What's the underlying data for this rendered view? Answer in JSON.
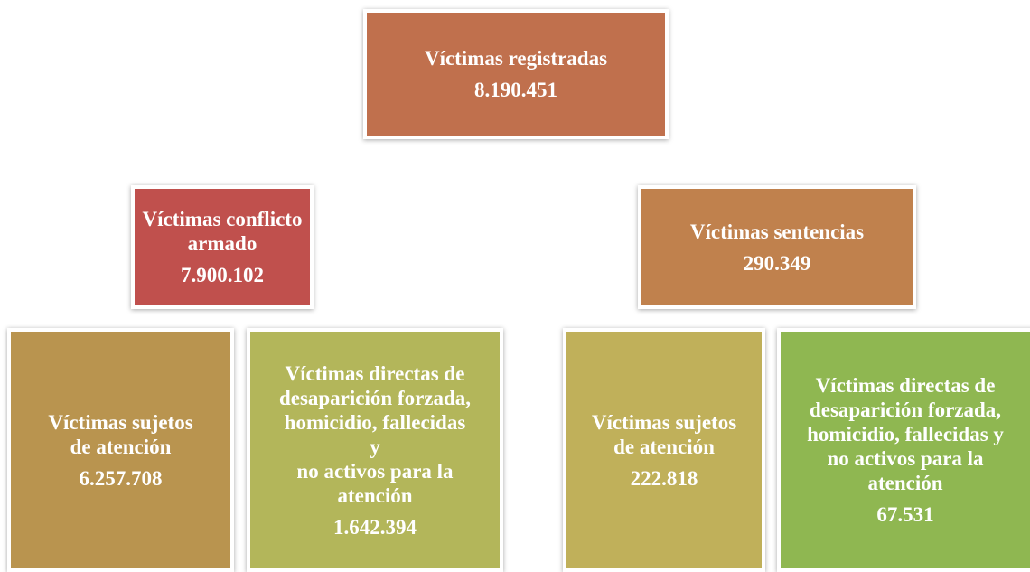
{
  "nodes": [
    {
      "label": [
        "Víctimas registradas"
      ],
      "value": "8.190.451"
    },
    {
      "label": [
        "Víctimas conflicto",
        "armado"
      ],
      "value": "7.900.102"
    },
    {
      "label": [
        "Víctimas sentencias"
      ],
      "value": "290.349"
    },
    {
      "label": [
        "Víctimas sujetos",
        "de atención"
      ],
      "value": "6.257.708"
    },
    {
      "label": [
        "Víctimas directas de",
        "desaparición forzada,",
        "homicidio, fallecidas",
        "y",
        "no activos para la",
        "atención"
      ],
      "value": "1.642.394"
    },
    {
      "label": [
        "Víctimas sujetos",
        "de atención"
      ],
      "value": "222.818"
    },
    {
      "label": [
        "Víctimas directas de",
        "desaparición forzada,",
        "homicidio, fallecidas y",
        "no activos para la",
        "atención"
      ],
      "value": "67.531"
    }
  ]
}
